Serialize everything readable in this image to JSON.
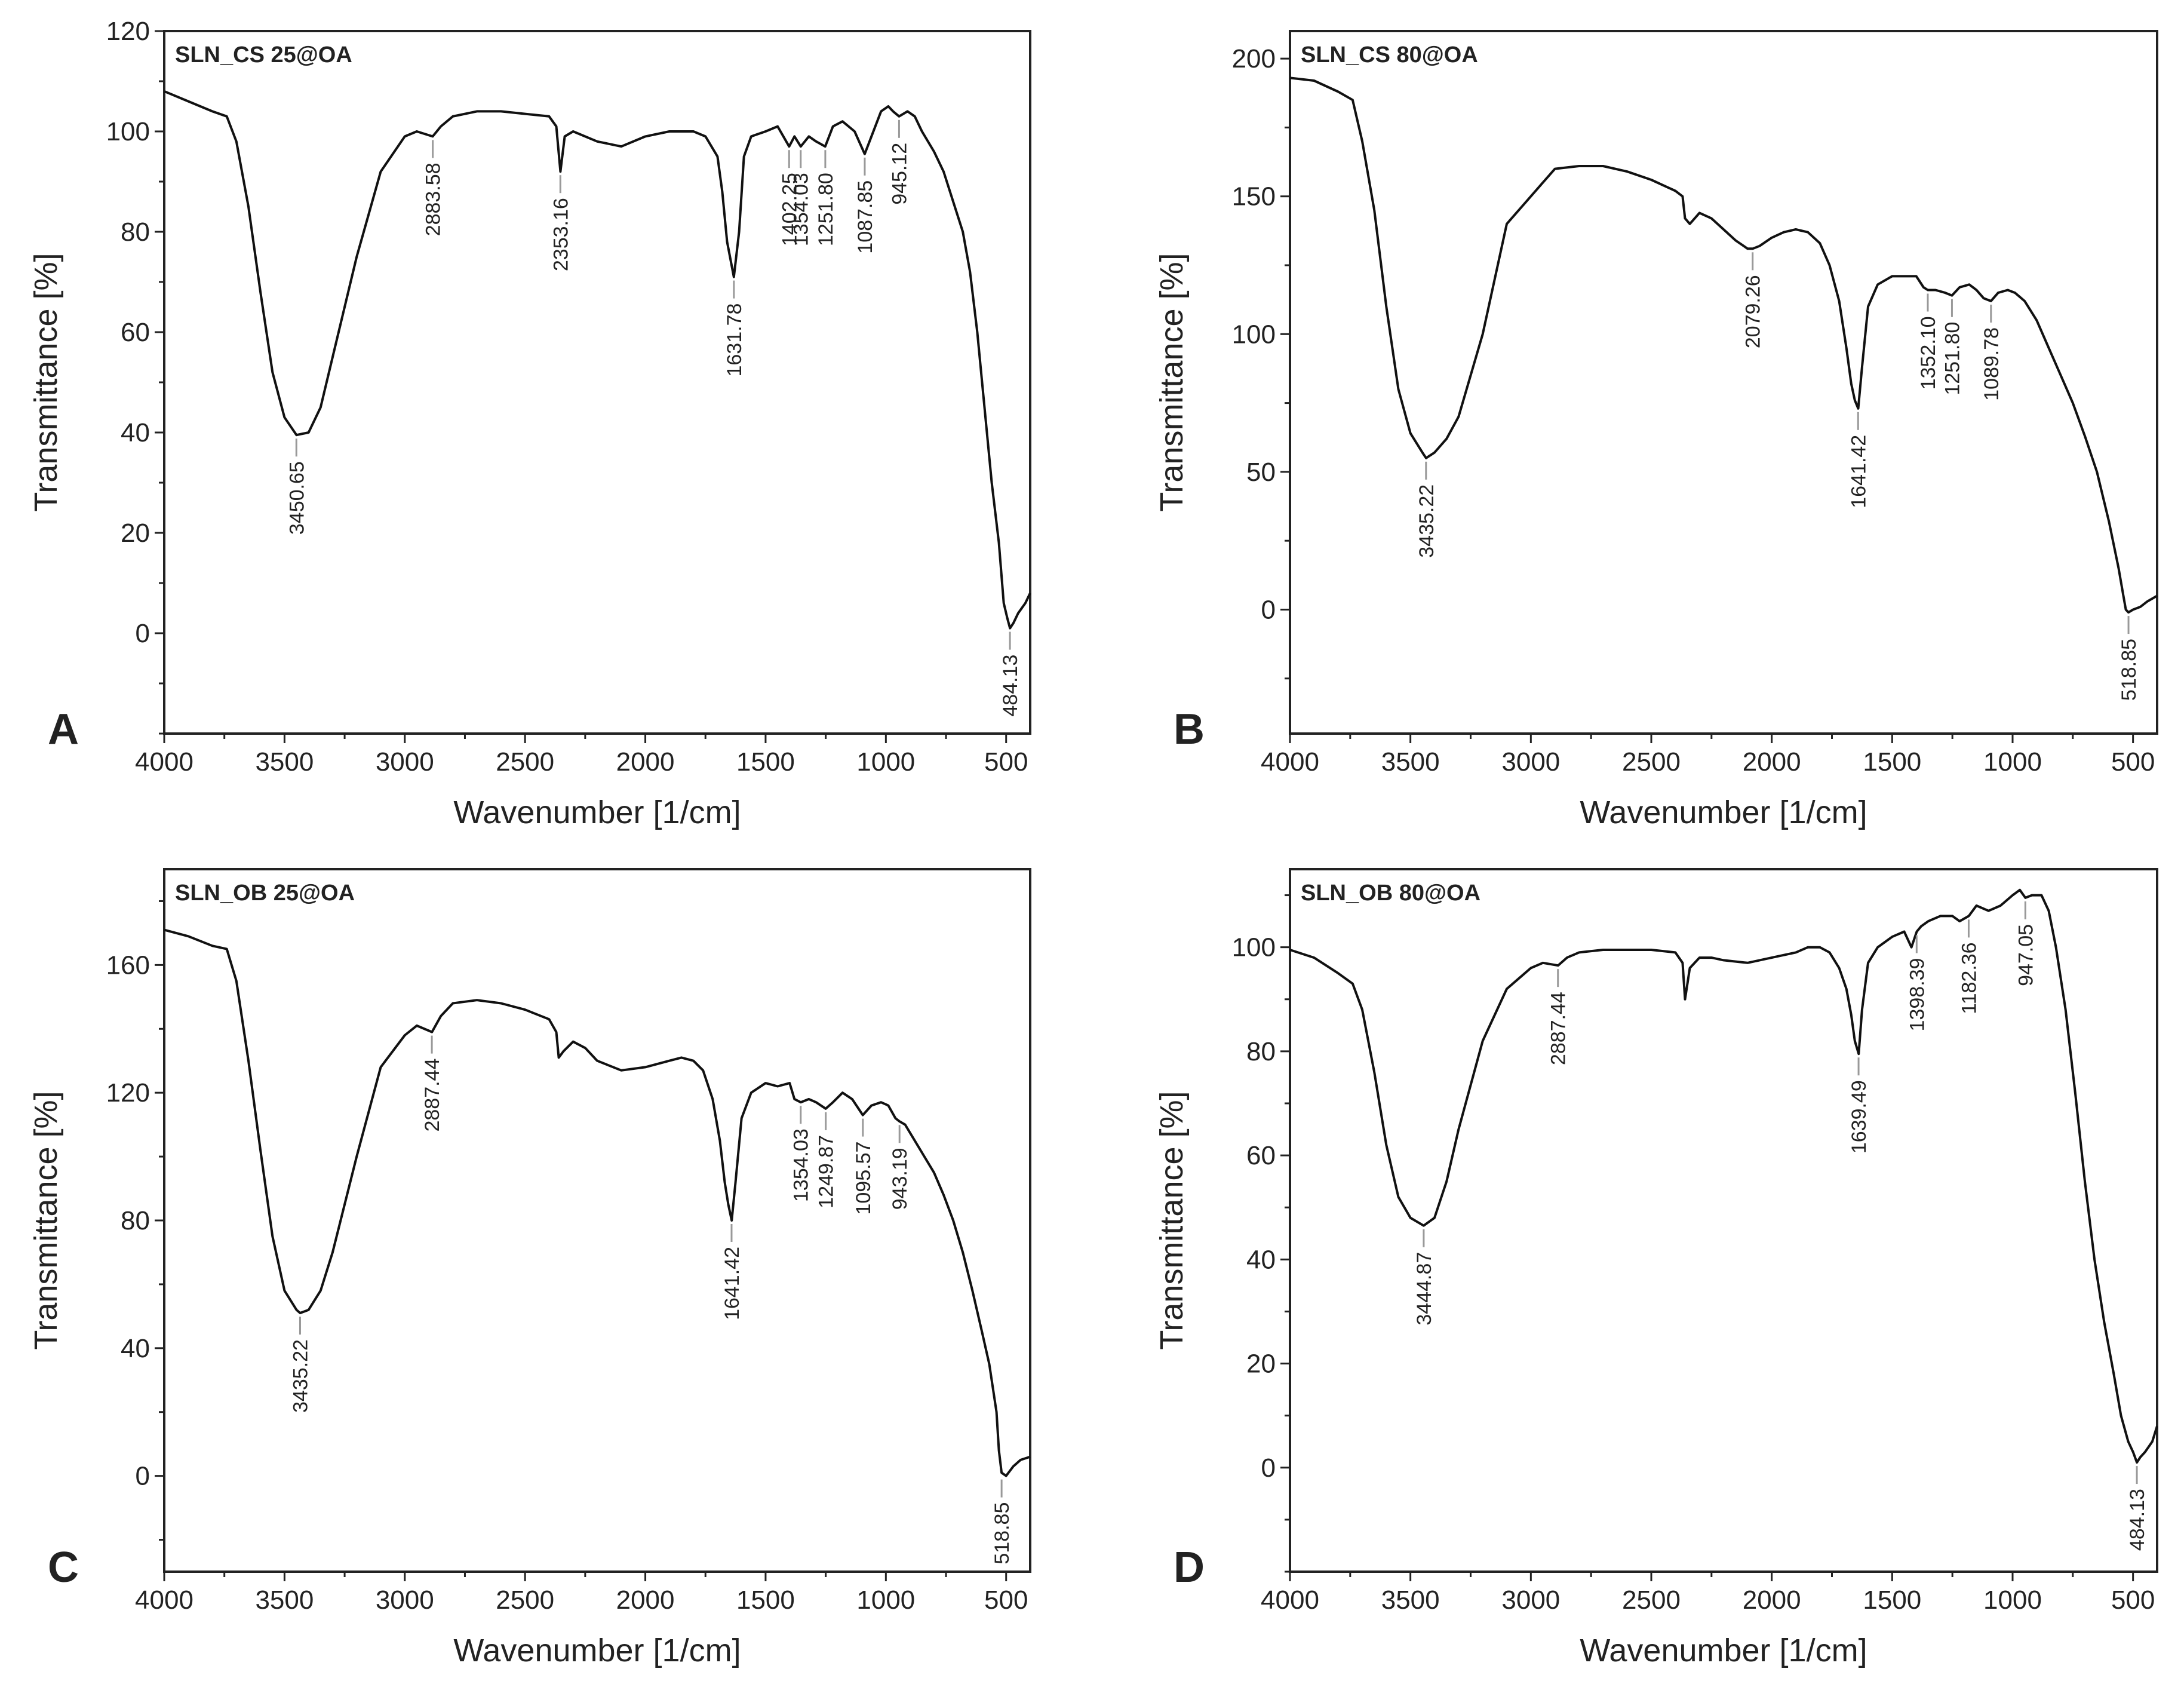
{
  "chart_data": [
    {
      "panel": "A",
      "type": "line",
      "title": "SLN_CS 25@OA",
      "xlabel": "Wavenumber [1/cm]",
      "ylabel": "Transmittance [%]",
      "xlim": [
        4000,
        400
      ],
      "ylim": [
        -20,
        120
      ],
      "xticks": [
        4000,
        3500,
        3000,
        2500,
        2000,
        1500,
        1000,
        500
      ],
      "yticks": [
        0,
        20,
        40,
        60,
        80,
        100,
        120
      ],
      "series": [
        {
          "name": "SLN_CS 25@OA",
          "x": [
            4000,
            3900,
            3800,
            3740,
            3700,
            3650,
            3600,
            3550,
            3500,
            3450,
            3400,
            3350,
            3300,
            3200,
            3100,
            3000,
            2950,
            2884,
            2850,
            2800,
            2700,
            2600,
            2400,
            2370,
            2353,
            2335,
            2300,
            2200,
            2100,
            2000,
            1900,
            1800,
            1750,
            1700,
            1680,
            1660,
            1632,
            1610,
            1590,
            1560,
            1500,
            1450,
            1402,
            1380,
            1354,
            1320,
            1290,
            1252,
            1220,
            1180,
            1130,
            1088,
            1060,
            1020,
            990,
            970,
            945,
            910,
            880,
            850,
            800,
            760,
            720,
            680,
            650,
            620,
            590,
            560,
            530,
            510,
            495,
            484,
            470,
            450,
            420,
            400
          ],
          "y": [
            108,
            106,
            104,
            103,
            98,
            85,
            68,
            52,
            43,
            39.5,
            40,
            45,
            55,
            75,
            92,
            99,
            100,
            99,
            101,
            103,
            104,
            104,
            103,
            101,
            92,
            99,
            100,
            98,
            97,
            99,
            100,
            100,
            99,
            95,
            88,
            78,
            71,
            80,
            95,
            99,
            100,
            101,
            97,
            99,
            97,
            99,
            98,
            97,
            101,
            102,
            100,
            95.5,
            99,
            104,
            105,
            104,
            103,
            104,
            103,
            100,
            96,
            92,
            86,
            80,
            72,
            60,
            45,
            30,
            18,
            6,
            3,
            1,
            2,
            4,
            6,
            8
          ]
        }
      ],
      "annotations": [
        {
          "x": 3450.65,
          "y": 39.5,
          "label": "3450.65",
          "position": "below"
        },
        {
          "x": 2883.58,
          "y": 99,
          "label": "2883.58",
          "position": "below"
        },
        {
          "x": 2353.16,
          "y": 92,
          "label": "2353.16",
          "position": "below"
        },
        {
          "x": 1631.78,
          "y": 71,
          "label": "1631.78",
          "position": "below"
        },
        {
          "x": 1402.25,
          "y": 97,
          "label": "1402.25",
          "position": "below"
        },
        {
          "x": 1354.03,
          "y": 97,
          "label": "1354.03",
          "position": "below"
        },
        {
          "x": 1251.8,
          "y": 97,
          "label": "1251.80",
          "position": "below"
        },
        {
          "x": 1087.85,
          "y": 95.5,
          "label": "1087.85",
          "position": "below"
        },
        {
          "x": 945.12,
          "y": 103,
          "label": "945.12",
          "position": "below"
        },
        {
          "x": 484.13,
          "y": 1,
          "label": "484.13",
          "position": "below"
        }
      ]
    },
    {
      "panel": "B",
      "type": "line",
      "title": "SLN_CS 80@OA",
      "xlabel": "Wavenumber [1/cm]",
      "ylabel": "Transmittance [%]",
      "xlim": [
        4000,
        400
      ],
      "ylim": [
        -45,
        210
      ],
      "xticks": [
        4000,
        3500,
        3000,
        2500,
        2000,
        1500,
        1000,
        500
      ],
      "yticks": [
        0,
        50,
        100,
        150,
        200
      ],
      "series": [
        {
          "name": "SLN_CS 80@OA",
          "x": [
            4000,
            3900,
            3800,
            3740,
            3700,
            3650,
            3600,
            3550,
            3500,
            3450,
            3435,
            3400,
            3350,
            3300,
            3200,
            3100,
            3000,
            2950,
            2900,
            2800,
            2700,
            2600,
            2500,
            2400,
            2370,
            2360,
            2340,
            2300,
            2250,
            2200,
            2150,
            2100,
            2079,
            2050,
            2000,
            1950,
            1900,
            1850,
            1800,
            1760,
            1720,
            1690,
            1670,
            1655,
            1641,
            1625,
            1600,
            1560,
            1500,
            1450,
            1400,
            1370,
            1352,
            1320,
            1280,
            1252,
            1220,
            1180,
            1150,
            1120,
            1090,
            1060,
            1020,
            990,
            950,
            900,
            850,
            800,
            750,
            700,
            650,
            600,
            560,
            540,
            530,
            519,
            500,
            470,
            440,
            400
          ],
          "y": [
            193,
            192,
            188,
            185,
            170,
            145,
            110,
            80,
            64,
            57,
            55,
            57,
            62,
            70,
            100,
            140,
            150,
            155,
            160,
            161,
            161,
            159,
            156,
            152,
            150,
            142,
            140,
            144,
            142,
            138,
            134,
            131,
            131,
            132,
            135,
            137,
            138,
            137,
            133,
            125,
            112,
            95,
            82,
            76,
            73,
            88,
            110,
            118,
            121,
            121,
            121,
            117,
            116,
            116,
            115,
            114,
            117,
            118,
            116,
            113,
            112,
            115,
            116,
            115,
            112,
            105,
            95,
            85,
            75,
            63,
            50,
            32,
            15,
            5,
            0,
            -1,
            0,
            1,
            3,
            5
          ]
        }
      ],
      "annotations": [
        {
          "x": 3435.22,
          "y": 55,
          "label": "3435.22",
          "position": "below"
        },
        {
          "x": 2079.26,
          "y": 131,
          "label": "2079.26",
          "position": "below"
        },
        {
          "x": 1641.42,
          "y": 73,
          "label": "1641.42",
          "position": "below"
        },
        {
          "x": 1352.1,
          "y": 116,
          "label": "1352.10",
          "position": "below"
        },
        {
          "x": 1251.8,
          "y": 114,
          "label": "1251.80",
          "position": "below"
        },
        {
          "x": 1089.78,
          "y": 112,
          "label": "1089.78",
          "position": "below"
        },
        {
          "x": 518.85,
          "y": -1,
          "label": "518.85",
          "position": "below"
        }
      ]
    },
    {
      "panel": "C",
      "type": "line",
      "title": "SLN_OB 25@OA",
      "xlabel": "Wavenumber [1/cm]",
      "ylabel": "Transmittance [%]",
      "xlim": [
        4000,
        400
      ],
      "ylim": [
        -30,
        190
      ],
      "xticks": [
        4000,
        3500,
        3000,
        2500,
        2000,
        1500,
        1000,
        500
      ],
      "yticks": [
        0,
        40,
        80,
        120,
        160
      ],
      "series": [
        {
          "name": "SLN_OB 25@OA",
          "x": [
            4000,
            3900,
            3800,
            3740,
            3700,
            3650,
            3600,
            3550,
            3500,
            3450,
            3435,
            3400,
            3350,
            3300,
            3200,
            3100,
            3000,
            2950,
            2887,
            2850,
            2800,
            2700,
            2600,
            2500,
            2400,
            2370,
            2360,
            2340,
            2300,
            2250,
            2200,
            2100,
            2000,
            1900,
            1850,
            1800,
            1760,
            1720,
            1690,
            1670,
            1655,
            1641,
            1625,
            1600,
            1560,
            1500,
            1450,
            1400,
            1380,
            1354,
            1320,
            1290,
            1250,
            1220,
            1180,
            1140,
            1096,
            1060,
            1020,
            990,
            960,
            943,
            920,
            880,
            840,
            800,
            760,
            720,
            680,
            640,
            600,
            570,
            540,
            530,
            519,
            500,
            470,
            440,
            400
          ],
          "y": [
            171,
            169,
            166,
            165,
            155,
            130,
            102,
            75,
            58,
            52,
            51,
            52,
            58,
            70,
            100,
            128,
            138,
            141,
            139,
            144,
            148,
            149,
            148,
            146,
            143,
            139,
            131,
            133,
            136,
            134,
            130,
            127,
            128,
            130,
            131,
            130,
            127,
            118,
            105,
            92,
            85,
            80,
            92,
            112,
            120,
            123,
            122,
            123,
            118,
            117,
            118,
            117,
            115,
            117,
            120,
            118,
            113,
            116,
            117,
            116,
            112,
            111,
            110,
            105,
            100,
            95,
            88,
            80,
            70,
            58,
            45,
            35,
            20,
            8,
            1,
            0,
            3,
            5,
            6
          ]
        }
      ],
      "annotations": [
        {
          "x": 3435.22,
          "y": 51,
          "label": "3435.22",
          "position": "below"
        },
        {
          "x": 2887.44,
          "y": 139,
          "label": "2887.44",
          "position": "below"
        },
        {
          "x": 1641.42,
          "y": 80,
          "label": "1641.42",
          "position": "below"
        },
        {
          "x": 1354.03,
          "y": 117,
          "label": "1354.03",
          "position": "below"
        },
        {
          "x": 1249.87,
          "y": 115,
          "label": "1249.87",
          "position": "below"
        },
        {
          "x": 1095.57,
          "y": 113,
          "label": "1095.57",
          "position": "below"
        },
        {
          "x": 943.19,
          "y": 111,
          "label": "943.19",
          "position": "below"
        },
        {
          "x": 518.85,
          "y": 0,
          "label": "518.85",
          "position": "below"
        }
      ]
    },
    {
      "panel": "D",
      "type": "line",
      "title": "SLN_OB 80@OA",
      "xlabel": "Wavenumber [1/cm]",
      "ylabel": "Transmittance [%]",
      "xlim": [
        4000,
        400
      ],
      "ylim": [
        -20,
        115
      ],
      "xticks": [
        4000,
        3500,
        3000,
        2500,
        2000,
        1500,
        1000,
        500
      ],
      "yticks": [
        0,
        20,
        40,
        60,
        80,
        100
      ],
      "series": [
        {
          "name": "SLN_OB 80@OA",
          "x": [
            4000,
            3900,
            3800,
            3740,
            3700,
            3650,
            3600,
            3550,
            3500,
            3445,
            3400,
            3350,
            3300,
            3200,
            3100,
            3000,
            2950,
            2887,
            2850,
            2800,
            2700,
            2600,
            2500,
            2400,
            2370,
            2360,
            2340,
            2300,
            2250,
            2200,
            2100,
            2000,
            1900,
            1850,
            1800,
            1760,
            1720,
            1690,
            1670,
            1655,
            1639,
            1625,
            1600,
            1560,
            1500,
            1450,
            1420,
            1398,
            1380,
            1350,
            1300,
            1250,
            1220,
            1182,
            1150,
            1100,
            1050,
            1000,
            970,
            947,
            920,
            880,
            850,
            820,
            780,
            740,
            700,
            660,
            620,
            580,
            550,
            520,
            500,
            484,
            470,
            450,
            420,
            400
          ],
          "y": [
            99.5,
            98,
            95,
            93,
            88,
            76,
            62,
            52,
            48,
            46.5,
            48,
            55,
            65,
            82,
            92,
            96,
            97,
            96.5,
            98,
            99,
            99.5,
            99.5,
            99.5,
            99,
            97,
            90,
            96,
            98,
            98,
            97.5,
            97,
            98,
            99,
            100,
            100,
            99,
            96,
            92,
            87,
            82,
            79.5,
            88,
            97,
            100,
            102,
            103,
            100,
            103,
            104,
            105,
            106,
            106,
            105,
            106,
            108,
            107,
            108,
            110,
            111,
            109.5,
            110,
            110,
            107,
            100,
            88,
            72,
            55,
            40,
            28,
            18,
            10,
            5,
            3,
            1,
            2,
            3,
            5,
            8
          ]
        }
      ],
      "annotations": [
        {
          "x": 3444.87,
          "y": 46.5,
          "label": "3444.87",
          "position": "below"
        },
        {
          "x": 2887.44,
          "y": 96.5,
          "label": "2887.44",
          "position": "below"
        },
        {
          "x": 1639.49,
          "y": 79.5,
          "label": "1639.49",
          "position": "below"
        },
        {
          "x": 1398.39,
          "y": 103,
          "label": "1398.39",
          "position": "below"
        },
        {
          "x": 1182.36,
          "y": 106,
          "label": "1182.36",
          "position": "below"
        },
        {
          "x": 947.05,
          "y": 109.5,
          "label": "947.05",
          "position": "below"
        },
        {
          "x": 484.13,
          "y": 1,
          "label": "484.13",
          "position": "below"
        }
      ]
    }
  ]
}
